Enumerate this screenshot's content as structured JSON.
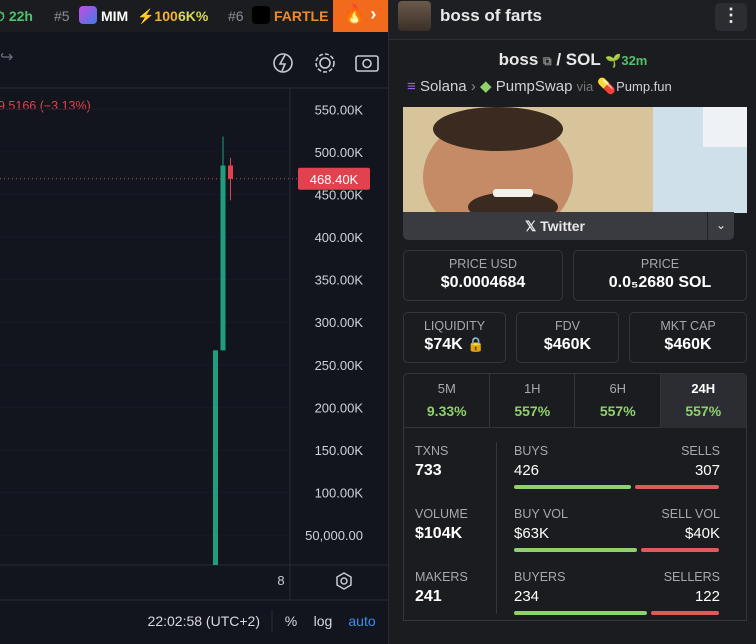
{
  "top_bar": {
    "timer": "22h",
    "items": [
      {
        "rank": "#5",
        "symbol": "MIM",
        "boost": "⚡100",
        "change": "6K%"
      },
      {
        "rank": "#6",
        "symbol": "FARTLE"
      }
    ]
  },
  "header": {
    "title": "boss of farts"
  },
  "chart_data": {
    "type": "candlestick",
    "status": "9.5166 (−3.13%)",
    "ylim": [
      15000,
      575000
    ],
    "yticks": [
      {
        "value": 550000,
        "label": "550.00K"
      },
      {
        "value": 500000,
        "label": "500.00K"
      },
      {
        "value": 450000,
        "label": "450.00K"
      },
      {
        "value": 400000,
        "label": "400.00K"
      },
      {
        "value": 350000,
        "label": "350.00K"
      },
      {
        "value": 300000,
        "label": "300.00K"
      },
      {
        "value": 250000,
        "label": "250.00K"
      },
      {
        "value": 200000,
        "label": "200.00K"
      },
      {
        "value": 150000,
        "label": "150.00K"
      },
      {
        "value": 100000,
        "label": "100.00K"
      },
      {
        "value": 50000,
        "label": "50,000.00"
      }
    ],
    "candles": [
      {
        "open": 15000,
        "high": 267000,
        "low": 15000,
        "close": 267000
      },
      {
        "open": 267000,
        "high": 518000,
        "low": 267000,
        "close": 484000
      },
      {
        "open": 484000,
        "high": 493000,
        "low": 443000,
        "close": 468400
      }
    ],
    "up_color": "#1f9e7e",
    "down_color": "#e0424f",
    "last_price": {
      "value": 468400,
      "label": "468.40K"
    },
    "x_label": "8",
    "time": "22:02:58 (UTC+2)",
    "options": [
      "%",
      "log",
      "auto"
    ]
  },
  "pair": {
    "base": "boss",
    "quote": "SOL",
    "age": "32m",
    "chain": "Solana",
    "dex": "PumpSwap",
    "via": "via",
    "launchpad": "Pump.fun",
    "link": "Twitter"
  },
  "prices": [
    {
      "label": "PRICE USD",
      "value": "$0.0004684"
    },
    {
      "label": "PRICE",
      "value": "0.0₅2680 SOL"
    }
  ],
  "metrics": [
    {
      "label": "LIQUIDITY",
      "value": "$74K"
    },
    {
      "label": "FDV",
      "value": "$460K"
    },
    {
      "label": "MKT CAP",
      "value": "$460K"
    }
  ],
  "periods": [
    {
      "label": "5M",
      "change": "9.33%"
    },
    {
      "label": "1H",
      "change": "557%"
    },
    {
      "label": "6H",
      "change": "557%"
    },
    {
      "label": "24H",
      "change": "557%"
    }
  ],
  "active_period": 3,
  "txns": [
    {
      "label": "TXNS",
      "total": 733,
      "left_label": "BUYS",
      "left": 426,
      "right_label": "SELLS",
      "right": 307
    },
    {
      "label": "VOLUME",
      "total": {
        "value": 104000,
        "label": "$104K"
      },
      "left_label": "BUY VOL",
      "left": {
        "value": 63000,
        "label": "$63K"
      },
      "right_label": "SELL VOL",
      "right": {
        "value": 40000,
        "label": "$40K"
      }
    },
    {
      "label": "MAKERS",
      "total": 241,
      "left_label": "BUYERS",
      "left": 234,
      "right_label": "SELLERS",
      "right": 122
    }
  ]
}
